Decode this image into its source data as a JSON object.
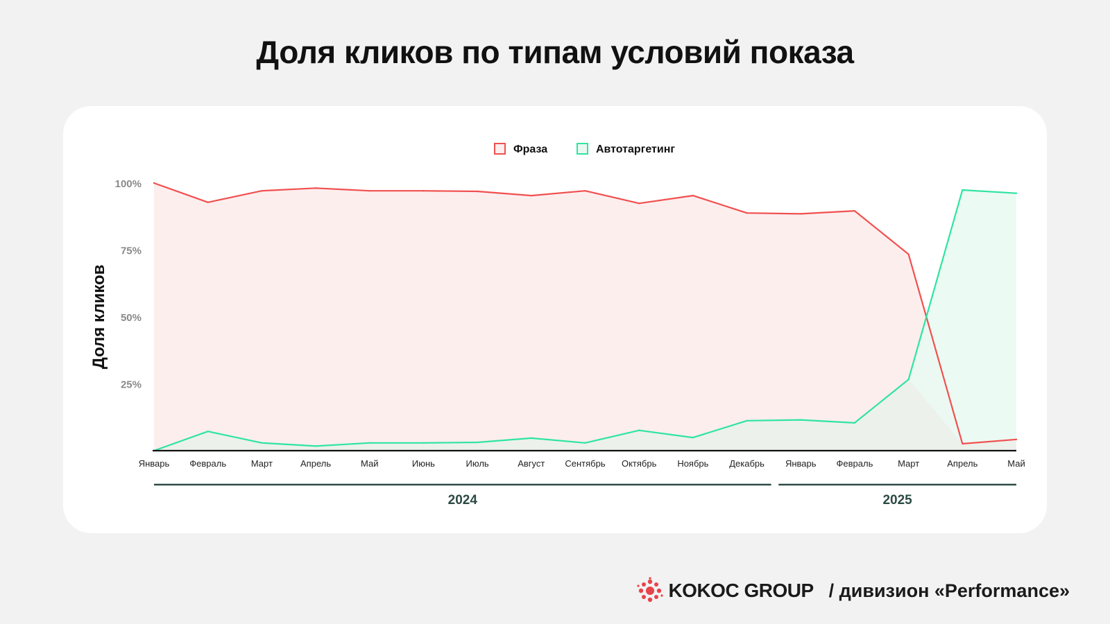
{
  "title": "Доля кликов по типам условий показа",
  "footer": {
    "brand": "KOKOC GROUP",
    "division": "/ дивизион «Performance»"
  },
  "colors": {
    "phrase": "#f0504f",
    "autotarget": "#2ee5a0",
    "phrase_fill": "#fdeeee",
    "autotarget_fill": "#e9f9f2",
    "overlap_fill": "#efebe7",
    "year_bar": "#2c4a45",
    "brand_red": "#e8434a"
  },
  "chart_data": {
    "type": "area",
    "ylabel": "Доля кликов",
    "ylim": [
      0,
      100
    ],
    "yticks": [
      25,
      50,
      75,
      100
    ],
    "ytick_labels": [
      "25%",
      "50%",
      "75%",
      "100%"
    ],
    "legend_position": "top-center",
    "categories": [
      "Январь",
      "Февраль",
      "Март",
      "Апрель",
      "Май",
      "Июнь",
      "Июль",
      "Август",
      "Сентябрь",
      "Октябрь",
      "Ноябрь",
      "Декабрь",
      "Январь",
      "Февраль",
      "Март",
      "Апрель",
      "Май"
    ],
    "year_groups": [
      {
        "label": "2024",
        "start": 0,
        "end": 11
      },
      {
        "label": "2025",
        "start": 12,
        "end": 16
      }
    ],
    "series": [
      {
        "name": "Фраза",
        "color": "#f0504f",
        "values": [
          100,
          92.8,
          97.1,
          98.1,
          97.1,
          97.1,
          96.9,
          95.3,
          97.1,
          92.4,
          95.3,
          88.8,
          88.5,
          89.6,
          73.4,
          2.6,
          4.2
        ]
      },
      {
        "name": "Автотаргетинг",
        "color": "#2ee5a0",
        "values": [
          0,
          7.2,
          2.9,
          1.7,
          2.9,
          2.9,
          3.1,
          4.7,
          2.9,
          7.6,
          4.9,
          11.2,
          11.5,
          10.4,
          26.6,
          97.4,
          96.2
        ]
      }
    ]
  }
}
